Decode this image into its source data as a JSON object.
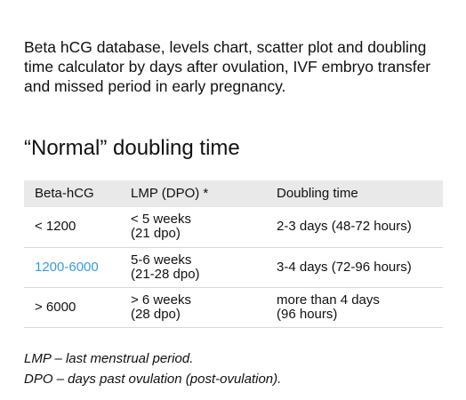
{
  "intro": {
    "text": "Beta hCG database, levels chart, scatter plot and doubling time calculator by days after ovulation, IVF embryo transfer and missed period in early pregnancy."
  },
  "section": {
    "title": "“Normal” doubling time"
  },
  "table": {
    "headers": [
      "Beta-hCG",
      "LMP (DPO) *",
      "Doubling time"
    ],
    "rows": [
      {
        "hcg": "< 1200",
        "lmp_line1": "< 5 weeks",
        "lmp_line2": "(21 dpo)",
        "doubling_line1": "2-3 days (48-72 hours)",
        "doubling_line2": ""
      },
      {
        "hcg": "1200-6000",
        "lmp_line1": "5-6 weeks",
        "lmp_line2": "(21-28 dpo)",
        "doubling_line1": "3-4 days (72-96 hours)",
        "doubling_line2": ""
      },
      {
        "hcg": "> 6000",
        "lmp_line1": "> 6 weeks",
        "lmp_line2": "(28 dpo)",
        "doubling_line1": "more than 4 days",
        "doubling_line2": "(96 hours)"
      }
    ]
  },
  "footnotes": {
    "lmp": "LMP – last menstrual period.",
    "dpo": "DPO – days past ovulation (post-ovulation)."
  },
  "colors": {
    "link": "#3a9bd5",
    "header_bg": "#e9e9e9"
  }
}
